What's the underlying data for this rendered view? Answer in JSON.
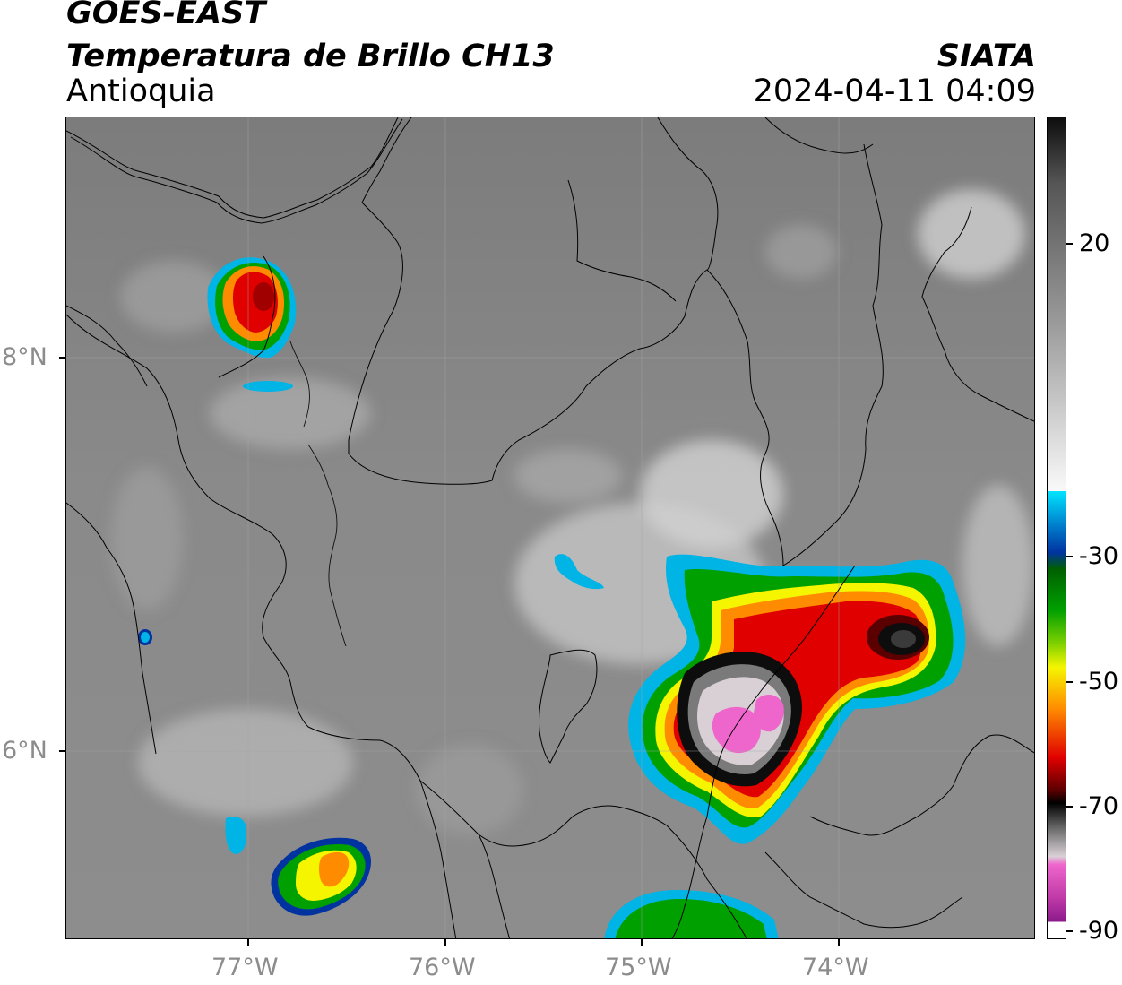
{
  "header": {
    "title_line1": "GOES-EAST",
    "title_line2": "Temperatura de Brillo CH13",
    "subtitle": "Antioquia",
    "organization": "SIATA",
    "datetime": "2024-04-11 04:09"
  },
  "map": {
    "x_ticks": [
      "77°W",
      "76°W",
      "75°W",
      "74°W"
    ],
    "y_ticks": [
      "8°N",
      "6°N"
    ]
  },
  "colorbar": {
    "ticks": [
      "20",
      "-30",
      "-50",
      "-70",
      "-90"
    ],
    "colors": {
      "warm_gray_top": "#0d0d0d",
      "warm_gray_mid": "#9a9a9a",
      "white": "#f7f7f7",
      "cyan": "#00e5ff",
      "blue": "#0033a0",
      "green": "#00a000",
      "yellow": "#f5f500",
      "orange": "#ff8c00",
      "red": "#e00000",
      "darkred": "#5a0000",
      "black": "#000000",
      "light_gray": "#d9d0d6",
      "pink": "#ee66cc",
      "purple": "#8b1a8b"
    }
  }
}
